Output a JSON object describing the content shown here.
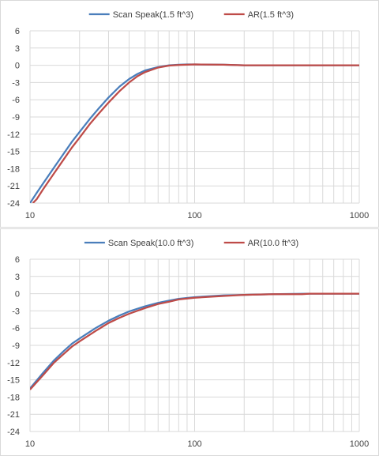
{
  "chart_data": [
    {
      "type": "line",
      "xscale": "log",
      "xlim": [
        10,
        1000
      ],
      "ylim": [
        -24,
        6
      ],
      "x_ticks": [
        "10",
        "100",
        "1000"
      ],
      "y_ticks": [
        "6",
        "3",
        "0",
        "-3",
        "-6",
        "-9",
        "-12",
        "-15",
        "-18",
        "-21",
        "-24"
      ],
      "grid": true,
      "legend_position": "top",
      "series": [
        {
          "name": "Scan Speak(1.5 ft^3)",
          "color": "#4a7ebb",
          "points": [
            [
              10,
              -24
            ],
            [
              11,
              -22.2
            ],
            [
              12,
              -20.6
            ],
            [
              14,
              -17.8
            ],
            [
              16,
              -15.4
            ],
            [
              18,
              -13.3
            ],
            [
              20,
              -11.6
            ],
            [
              23,
              -9.4
            ],
            [
              26,
              -7.6
            ],
            [
              30,
              -5.6
            ],
            [
              35,
              -3.7
            ],
            [
              40,
              -2.4
            ],
            [
              45,
              -1.5
            ],
            [
              50,
              -0.9
            ],
            [
              60,
              -0.3
            ],
            [
              70,
              0
            ],
            [
              80,
              0.1
            ],
            [
              90,
              0.15
            ],
            [
              100,
              0.15
            ],
            [
              150,
              0.1
            ],
            [
              200,
              0
            ],
            [
              500,
              0
            ],
            [
              1000,
              0
            ]
          ]
        },
        {
          "name": "AR(1.5 ft^3)",
          "color": "#be4b48",
          "points": [
            [
              10.4,
              -24
            ],
            [
              11,
              -23.3
            ],
            [
              12,
              -21.6
            ],
            [
              14,
              -18.8
            ],
            [
              16,
              -16.4
            ],
            [
              18,
              -14.3
            ],
            [
              20,
              -12.6
            ],
            [
              23,
              -10.3
            ],
            [
              26,
              -8.5
            ],
            [
              30,
              -6.5
            ],
            [
              35,
              -4.5
            ],
            [
              40,
              -3.0
            ],
            [
              45,
              -1.9
            ],
            [
              50,
              -1.2
            ],
            [
              60,
              -0.4
            ],
            [
              70,
              -0.05
            ],
            [
              80,
              0.05
            ],
            [
              90,
              0.1
            ],
            [
              100,
              0.15
            ],
            [
              150,
              0.1
            ],
            [
              200,
              0
            ],
            [
              500,
              0
            ],
            [
              1000,
              0
            ]
          ]
        }
      ]
    },
    {
      "type": "line",
      "xscale": "log",
      "xlim": [
        10,
        1000
      ],
      "ylim": [
        -24,
        6
      ],
      "x_ticks": [
        "10",
        "100",
        "1000"
      ],
      "y_ticks": [
        "6",
        "3",
        "0",
        "-3",
        "-6",
        "-9",
        "-12",
        "-15",
        "-18",
        "-21",
        "-24"
      ],
      "grid": true,
      "legend_position": "top",
      "series": [
        {
          "name": "Scan Speak(10.0 ft^3)",
          "color": "#4a7ebb",
          "points": [
            [
              10,
              -16.5
            ],
            [
              12,
              -13.8
            ],
            [
              14,
              -11.6
            ],
            [
              16,
              -10.0
            ],
            [
              18,
              -8.7
            ],
            [
              20,
              -7.8
            ],
            [
              25,
              -6.0
            ],
            [
              30,
              -4.7
            ],
            [
              35,
              -3.8
            ],
            [
              40,
              -3.1
            ],
            [
              50,
              -2.2
            ],
            [
              60,
              -1.6
            ],
            [
              70,
              -1.2
            ],
            [
              80,
              -0.9
            ],
            [
              100,
              -0.6
            ],
            [
              150,
              -0.3
            ],
            [
              200,
              -0.2
            ],
            [
              300,
              -0.1
            ],
            [
              500,
              0
            ],
            [
              1000,
              0
            ]
          ]
        },
        {
          "name": "AR(10.0 ft^3)",
          "color": "#be4b48",
          "points": [
            [
              10,
              -16.7
            ],
            [
              12,
              -14.2
            ],
            [
              14,
              -12.0
            ],
            [
              16,
              -10.5
            ],
            [
              18,
              -9.2
            ],
            [
              20,
              -8.3
            ],
            [
              25,
              -6.5
            ],
            [
              30,
              -5.1
            ],
            [
              35,
              -4.2
            ],
            [
              40,
              -3.5
            ],
            [
              50,
              -2.5
            ],
            [
              60,
              -1.8
            ],
            [
              70,
              -1.4
            ],
            [
              80,
              -1.0
            ],
            [
              100,
              -0.7
            ],
            [
              150,
              -0.4
            ],
            [
              200,
              -0.2
            ],
            [
              300,
              -0.1
            ],
            [
              450,
              -0.1
            ],
            [
              500,
              0
            ],
            [
              1000,
              0
            ]
          ]
        }
      ]
    }
  ]
}
